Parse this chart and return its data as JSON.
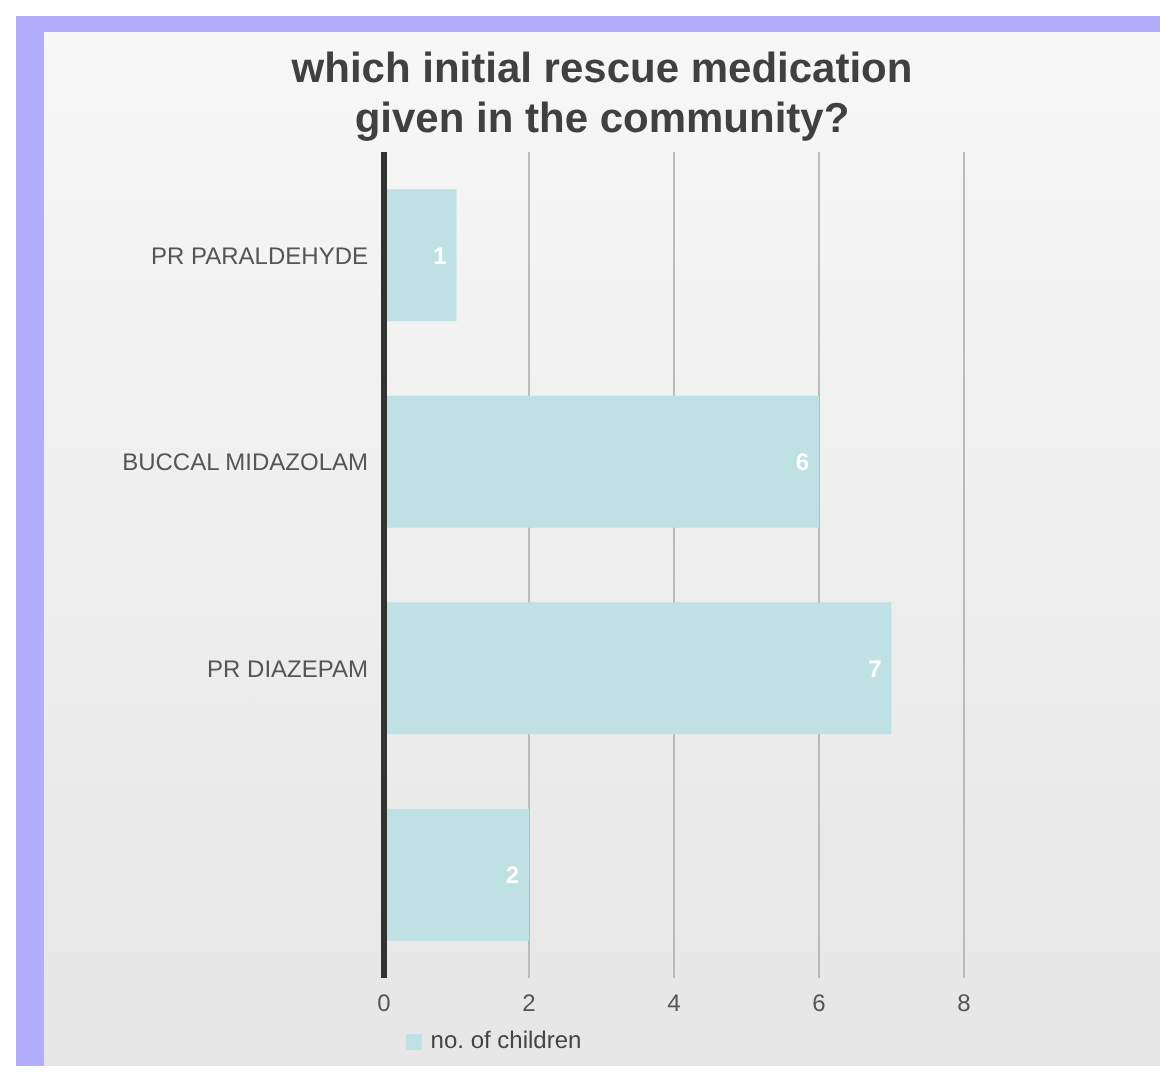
{
  "chart_data": {
    "type": "bar",
    "orientation": "horizontal",
    "title": "which initial rescue medication given in the community?",
    "categories": [
      "PR PARALDEHYDE",
      "BUCCAL MIDAZOLAM",
      "PR DIAZEPAM",
      null
    ],
    "series": [
      {
        "name": "no. of children",
        "color": "#bfe1e3",
        "values": [
          1,
          6,
          7,
          2
        ]
      }
    ],
    "xlim": [
      0,
      8
    ],
    "xticks": [
      0,
      2,
      4,
      6,
      8
    ],
    "grid": "x",
    "legend": "bottom",
    "data_labels": true
  }
}
